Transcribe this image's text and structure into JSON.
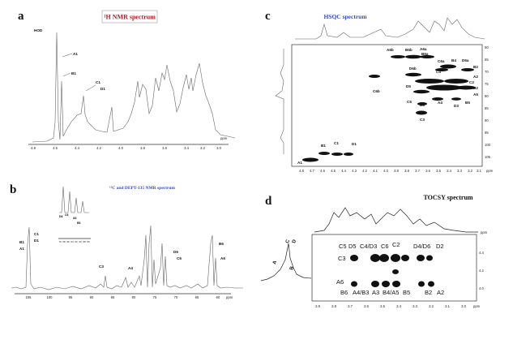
{
  "panels": {
    "a": {
      "letter": "a",
      "title": "¹H NMR spectrum",
      "x_ticks": [
        "4.8",
        "4.6",
        "4.4",
        "4.2",
        "4.0",
        "3.8",
        "3.6",
        "3.4",
        "3.2",
        "3.0"
      ],
      "unit": "ppm",
      "labels": [
        "HOD",
        "A1",
        "B1",
        "C1",
        "D1"
      ]
    },
    "b": {
      "letter": "b",
      "title": "¹³C and DEPT-135 NMR spectrum",
      "x_ticks": [
        "105",
        "100",
        "95",
        "90",
        "85",
        "80",
        "75",
        "70",
        "65",
        "60"
      ],
      "unit": "ppm",
      "labels": [
        "B1",
        "C1",
        "D1",
        "A1",
        "C3",
        "A4",
        "D6",
        "C6",
        "B6",
        "A6"
      ],
      "inset_ticks": [
        "70",
        "68",
        "66",
        "64",
        "62",
        "60",
        "58",
        "56"
      ],
      "inset_labels": [
        "D6",
        "C6",
        "A6",
        "B6"
      ]
    },
    "c": {
      "letter": "c",
      "title": "HSQC spectrum",
      "x_ticks": [
        "4.8",
        "4.7",
        "4.6",
        "4.5",
        "4.4",
        "4.3",
        "4.2",
        "4.1",
        "4.0",
        "3.9",
        "3.8",
        "3.7",
        "3.6",
        "3.5",
        "3.4",
        "3.3",
        "3.2",
        "3.1"
      ],
      "y_ticks": [
        "60",
        "65",
        "70",
        "75",
        "80",
        "85",
        "90",
        "95",
        "100",
        "105"
      ],
      "unit": "ppm",
      "labels": [
        "A6b",
        "B6b",
        "A6a",
        "B6a",
        "C6a",
        "B4",
        "D6a",
        "B2",
        "C4",
        "A2",
        "D6b",
        "C2",
        "D2",
        "A3",
        "B3",
        "D3",
        "D5",
        "A5",
        "C5",
        "A4",
        "B5",
        "C3",
        "C6b",
        "B1",
        "C1",
        "D1",
        "A1"
      ]
    },
    "d": {
      "letter": "d",
      "title": "TOCSY spectrum",
      "x_ticks": [
        "3.9",
        "3.8",
        "3.7",
        "3.6",
        "3.5",
        "3.4",
        "3.3",
        "3.2",
        "3.1",
        "3.0"
      ],
      "y_ticks": [
        "4.4",
        "4.2",
        "4.0"
      ],
      "unit": "ppm",
      "axis_unit_right": "ppm",
      "side_labels": [
        "A",
        "B",
        "C",
        "D"
      ],
      "top_row": [
        "C5",
        "D5",
        "C4/D3",
        "C6",
        "C2",
        "D4/D6",
        "D2"
      ],
      "left_label": "C3",
      "bottom_left": "A6",
      "bottom_row": [
        "B6",
        "A4/B3",
        "A3",
        "B4/A5",
        "B5",
        "B2",
        "A2"
      ]
    }
  }
}
